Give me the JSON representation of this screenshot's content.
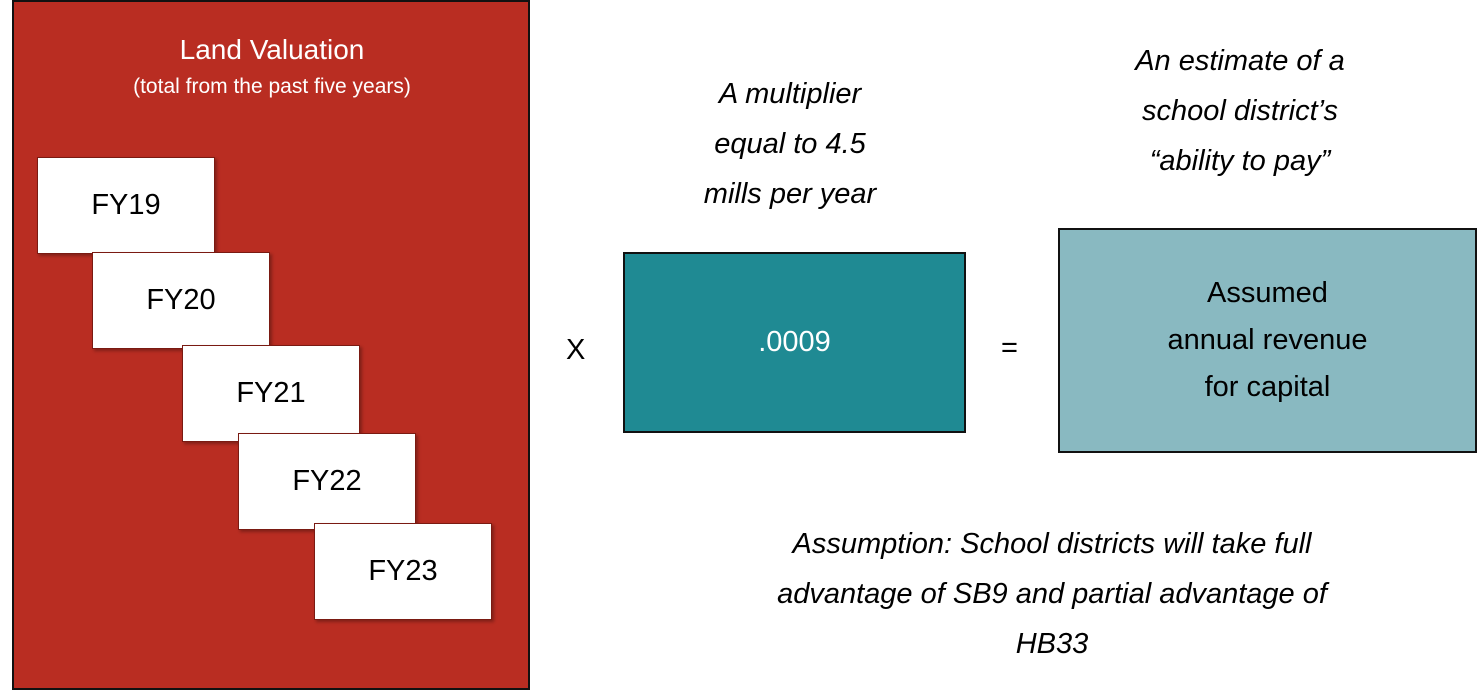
{
  "valuation": {
    "title": "Land Valuation",
    "subtitle": "(total from the past five years)",
    "years": [
      "FY19",
      "FY20",
      "FY21",
      "FY22",
      "FY23"
    ]
  },
  "operator_multiply": "X",
  "multiplier": {
    "caption": [
      "A multiplier",
      "equal to 4.5",
      "mills per year"
    ],
    "value": ".0009"
  },
  "operator_equals": "=",
  "result": {
    "caption": [
      "An estimate of a",
      "school district’s",
      "“ability to pay”"
    ],
    "label": [
      "Assumed",
      "annual revenue",
      "for capital"
    ]
  },
  "assumption": [
    "Assumption: School districts will take full",
    "advantage of SB9 and partial advantage of",
    "HB33"
  ]
}
